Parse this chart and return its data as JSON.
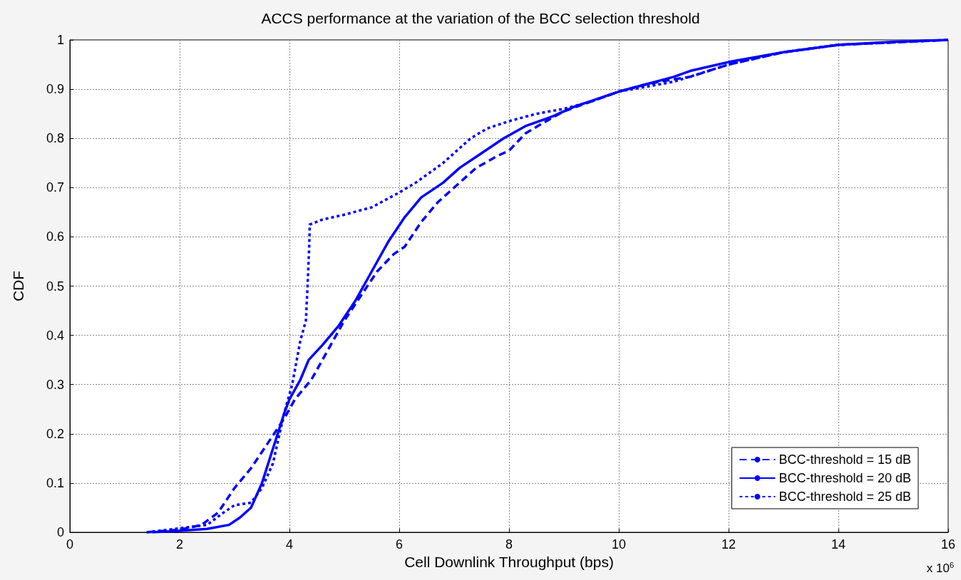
{
  "chart_data": {
    "type": "line",
    "title": "ACCS performance at the variation of the BCC selection threshold",
    "xlabel": "Cell Downlink Throughput (bps)",
    "ylabel": "CDF",
    "annotations": [
      "x 10$^{6}$"
    ],
    "xlim": [
      0,
      16
    ],
    "xticks": [
      0,
      2,
      4,
      6,
      8,
      10,
      12,
      14,
      16
    ],
    "ylim": [
      0,
      1
    ],
    "yticks": [
      0,
      0.1,
      0.2,
      0.3,
      0.4,
      0.5,
      0.6,
      0.7,
      0.8,
      0.9,
      1
    ],
    "grid": true,
    "legend": "bottom right",
    "marker": "none",
    "series": [
      {
        "name": "BCC-threshold = 15 dB",
        "color": "#0000ff",
        "line_style": "dashed",
        "x": [
          1.4,
          2,
          2.4,
          2.7,
          3,
          3.3,
          3.6,
          3.9,
          4.1,
          4.4,
          4.7,
          5,
          5.3,
          5.6,
          5.9,
          6.1,
          6.4,
          6.7,
          7,
          7.4,
          7.8,
          8,
          8.3,
          8.6,
          9,
          9.5,
          10,
          10.5,
          11,
          11.3,
          12,
          13,
          14,
          15,
          16
        ],
        "values": [
          0,
          0.005,
          0.015,
          0.04,
          0.09,
          0.13,
          0.18,
          0.23,
          0.27,
          0.31,
          0.37,
          0.43,
          0.48,
          0.53,
          0.565,
          0.58,
          0.63,
          0.67,
          0.7,
          0.74,
          0.765,
          0.775,
          0.81,
          0.83,
          0.855,
          0.875,
          0.895,
          0.91,
          0.92,
          0.925,
          0.95,
          0.975,
          0.99,
          0.995,
          1
        ]
      },
      {
        "name": "BCC-threshold = 20 dB",
        "color": "#0000ff",
        "line_style": "solid",
        "x": [
          1.5,
          2,
          2.5,
          2.9,
          3.1,
          3.3,
          3.5,
          3.7,
          3.9,
          4,
          4.2,
          4.35,
          4.6,
          4.9,
          5.2,
          5.5,
          5.8,
          6.1,
          6.4,
          6.8,
          7.1,
          7.5,
          7.9,
          8.3,
          8.8,
          9.2,
          10,
          10.5,
          11,
          11.3,
          12,
          13,
          14,
          15,
          16
        ],
        "values": [
          0,
          0.003,
          0.007,
          0.015,
          0.03,
          0.05,
          0.1,
          0.17,
          0.24,
          0.27,
          0.31,
          0.35,
          0.38,
          0.42,
          0.47,
          0.53,
          0.59,
          0.64,
          0.68,
          0.71,
          0.74,
          0.77,
          0.8,
          0.825,
          0.845,
          0.865,
          0.895,
          0.91,
          0.925,
          0.937,
          0.955,
          0.975,
          0.99,
          0.996,
          1
        ]
      },
      {
        "name": "BCC-threshold = 25 dB",
        "color": "#0000ff",
        "line_style": "dotted",
        "x": [
          1.4,
          2,
          2.5,
          2.8,
          3,
          3.3,
          3.5,
          3.7,
          3.8,
          3.9,
          4.05,
          4.2,
          4.3,
          4.33,
          4.36,
          4.37,
          4.6,
          5,
          5.5,
          6,
          6.3,
          6.8,
          7.3,
          7.6,
          8,
          8.5,
          9,
          9.5,
          10,
          11,
          12,
          13,
          14,
          15,
          16
        ],
        "values": [
          0,
          0.008,
          0.015,
          0.04,
          0.055,
          0.06,
          0.09,
          0.14,
          0.19,
          0.24,
          0.3,
          0.39,
          0.43,
          0.5,
          0.58,
          0.625,
          0.635,
          0.645,
          0.66,
          0.69,
          0.71,
          0.75,
          0.8,
          0.82,
          0.835,
          0.85,
          0.86,
          0.875,
          0.895,
          0.915,
          0.95,
          0.975,
          0.99,
          0.995,
          1
        ]
      }
    ]
  }
}
